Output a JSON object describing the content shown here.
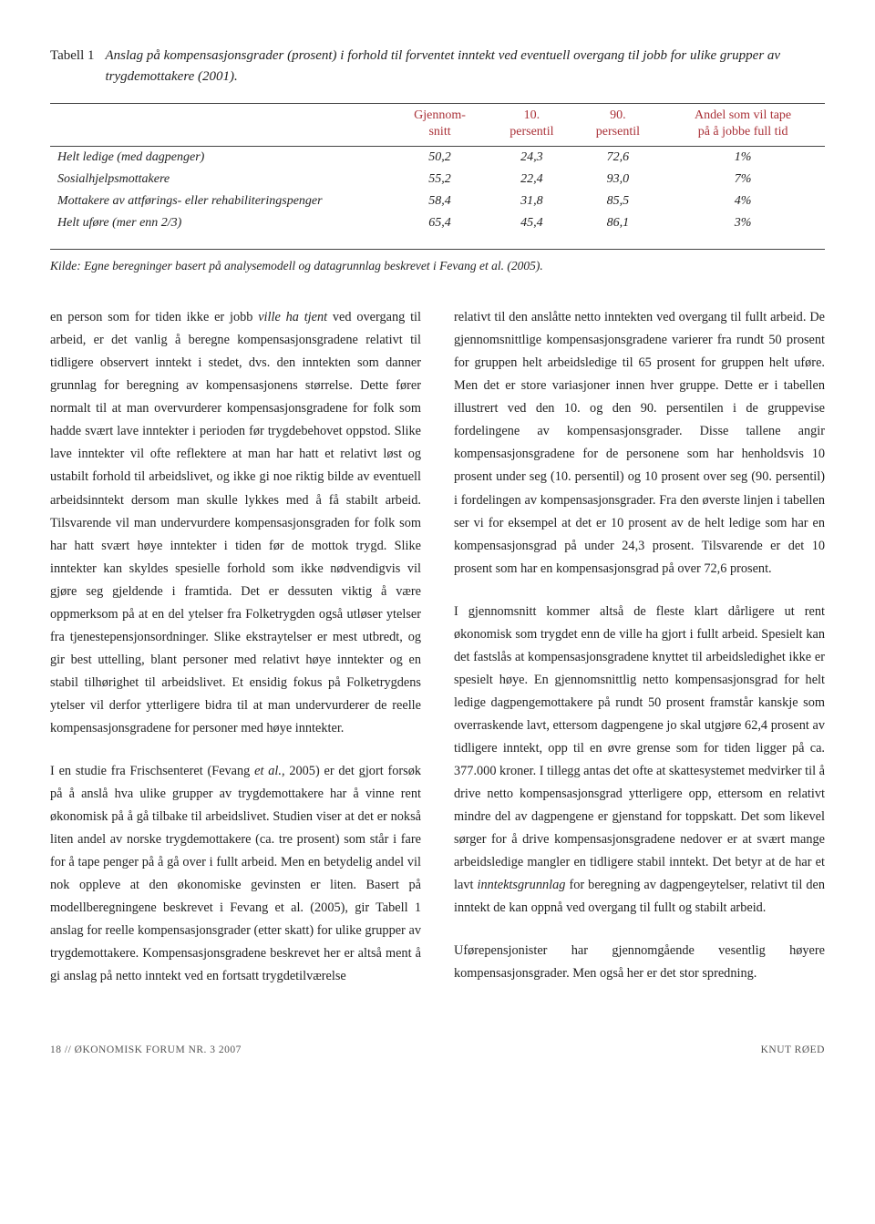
{
  "table": {
    "label": "Tabell 1",
    "title": "Anslag på kompensasjonsgrader (prosent) i forhold til forventet inntekt ved eventuell overgang til jobb for ulike grupper av trygdemottakere (2001).",
    "headers": {
      "blank": "",
      "h1a": "Gjennom-",
      "h1b": "snitt",
      "h2a": "10.",
      "h2b": "persentil",
      "h3a": "90.",
      "h3b": "persentil",
      "h4a": "Andel som vil tape",
      "h4b": "på å jobbe full tid"
    },
    "rows": [
      {
        "label": "Helt ledige (med dagpenger)",
        "c1": "50,2",
        "c2": "24,3",
        "c3": "72,6",
        "c4": "1%"
      },
      {
        "label": "Sosialhjelpsmottakere",
        "c1": "55,2",
        "c2": "22,4",
        "c3": "93,0",
        "c4": "7%"
      },
      {
        "label": "Mottakere av attførings- eller rehabiliteringspenger",
        "c1": "58,4",
        "c2": "31,8",
        "c3": "85,5",
        "c4": "4%"
      },
      {
        "label": "Helt uføre (mer enn 2/3)",
        "c1": "65,4",
        "c2": "45,4",
        "c3": "86,1",
        "c4": "3%"
      }
    ],
    "source": "Kilde: Egne beregninger basert på analysemodell og datagrunnlag beskrevet i Fevang et al. (2005)."
  },
  "body": {
    "left": {
      "p1": "en person som for tiden ikke er jobb ville ha tjent ved overgang til arbeid, er det vanlig å beregne kompensasjonsgradene relativt til tidligere observert inntekt i stedet, dvs. den inntekten som danner grunnlag for beregning av kompensasjonens størrelse. Dette fører normalt til at man overvurderer kompensasjonsgradene for folk som hadde svært lave inntekter i perioden før trygdebehovet oppstod. Slike lave inntekter vil ofte reflektere at man har hatt et relativt løst og ustabilt forhold til arbeidslivet, og ikke gi noe riktig bilde av eventuell arbeidsinntekt dersom man skulle lykkes med å få stabilt arbeid. Tilsvarende vil man undervurdere kompensasjonsgraden for folk som har hatt svært høye inntekter i tiden før de mottok trygd. Slike inntekter kan skyldes spesielle forhold som ikke nødvendigvis vil gjøre seg gjeldende i framtida. Det er dessuten viktig å være oppmerksom på at en del ytelser fra Folketrygden også utløser ytelser fra tjenestepensjonsordninger. Slike ekstraytelser er mest utbredt, og gir best uttelling, blant personer med relativt høye inntekter og en stabil tilhørighet til arbeidslivet. Et ensidig fokus på Folketrygdens ytelser vil derfor ytterligere bidra til at man undervurderer de reelle kompensasjonsgradene for personer med høye inntekter.",
      "p2": "I en studie fra Frischsenteret (Fevang et al., 2005) er det gjort forsøk på å anslå hva ulike grupper av trygdemottakere har å vinne rent økonomisk på å gå tilbake til arbeidslivet. Studien viser at det er nokså liten andel av norske trygdemottakere (ca. tre prosent) som står i fare for å tape penger på å gå over i fullt arbeid. Men en betydelig andel vil nok oppleve at den økonomiske gevinsten er liten. Basert på modellberegningene beskrevet i Fevang et al. (2005), gir Tabell 1 anslag for reelle kompensasjonsgrader (etter skatt) for ulike grupper av trygdemottakere. Kompensasjonsgradene beskrevet her er altså ment å gi anslag på netto inntekt ved en fortsatt trygdetilværelse"
    },
    "right": {
      "p1": "relativt til den anslåtte netto inntekten ved overgang til fullt arbeid. De gjennomsnittlige kompensasjonsgradene varierer fra rundt 50 prosent for gruppen helt arbeidsledige til 65 prosent for gruppen helt uføre. Men det er store variasjoner innen hver gruppe. Dette er i tabellen illustrert ved den 10. og den 90. persentilen i de gruppevise fordelingene av kompensasjonsgrader. Disse tallene angir kompensasjonsgradene for de personene som har henholdsvis 10 prosent under seg (10. persentil) og 10 prosent over seg (90. persentil) i fordelingen av kompensasjonsgrader. Fra den øverste linjen i tabellen ser vi for eksempel at det er 10 prosent av de helt ledige som har en kompensasjonsgrad på under 24,3 prosent. Tilsvarende er det 10 prosent som har en kompensasjonsgrad på over 72,6 prosent.",
      "p2": "I gjennomsnitt kommer altså de fleste klart dårligere ut rent økonomisk som trygdet enn de ville ha gjort i fullt arbeid. Spesielt kan det fastslås at kompensasjonsgradene knyttet til arbeidsledighet ikke er spesielt høye. En gjennomsnittlig netto kompensasjonsgrad for helt ledige dagpengemottakere på rundt 50 prosent framstår kanskje som overraskende lavt, ettersom dagpengene jo skal utgjøre 62,4 prosent av tidligere inntekt, opp til en øvre grense som for tiden ligger på ca. 377.000 kroner. I tillegg antas det ofte at skattesystemet medvirker til å drive netto kompensasjonsgrad ytterligere opp, ettersom en relativt mindre del av dagpengene er gjenstand for toppskatt. Det som likevel sørger for å drive kompensasjonsgradene nedover er at svært mange arbeidsledige mangler en tidligere stabil inntekt. Det betyr at de har et lavt inntektsgrunnlag for beregning av dagpengeytelser, relativt til den inntekt de kan oppnå ved overgang til fullt og stabilt arbeid.",
      "p3": "Uførepensjonister har gjennomgående vesentlig høyere kompensasjonsgrader. Men også her er det stor spredning."
    }
  },
  "footer": {
    "left": "18 // ØKONOMISK FORUM NR. 3 2007",
    "right": "KNUT RØED"
  }
}
